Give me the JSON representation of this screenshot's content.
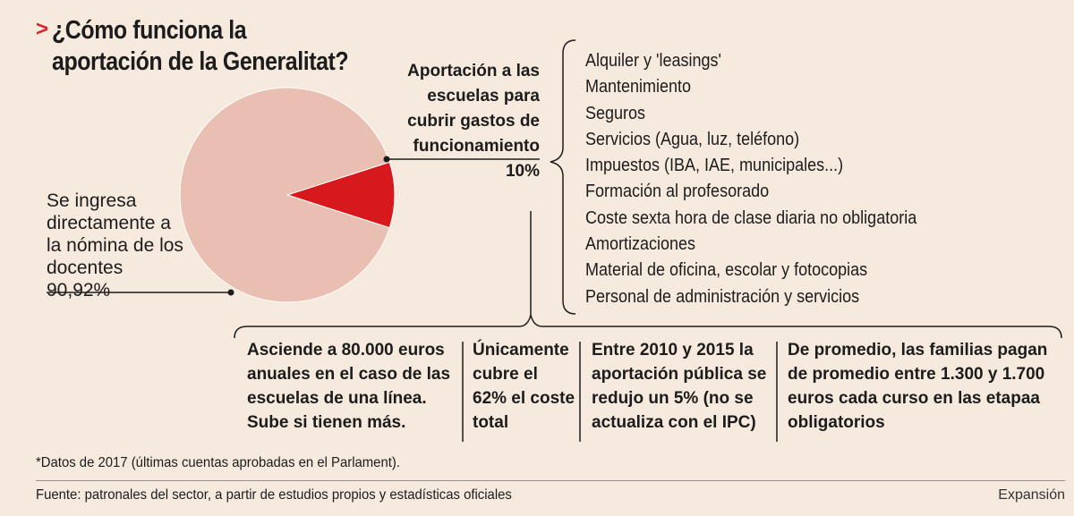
{
  "header": {
    "arrow": ">",
    "title": "¿Cómo funciona la aportación de la Generalitat?"
  },
  "chart_data": {
    "type": "pie",
    "categories": [
      "Se ingresa directamente a la nómina de los docentes",
      "Aportación a las escuelas para cubrir gastos de funcionamiento"
    ],
    "values": [
      90.92,
      10
    ],
    "value_labels": [
      "90,92%",
      "10%"
    ],
    "colors": [
      "#e8bfb1",
      "#d7191e"
    ]
  },
  "labels": {
    "big_text": "Se ingresa directamente a la nómina de los docentes",
    "big_pct": "90,92%",
    "small_text": "Aportación a las escuelas para cubrir gastos de funcionamiento",
    "small_pct": "10%"
  },
  "expense_items": [
    "Alquiler y 'leasings'",
    "Mantenimiento",
    "Seguros",
    "Servicios (Agua, luz, teléfono)",
    "Impuestos (IBA, IAE, municipales...)",
    "Formación al profesorado",
    "Coste sexta hora de clase diaria no obligatoria",
    "Amortizaciones",
    "Material de oficina, escolar y fotocopias",
    "Personal de administración y servicios"
  ],
  "notes": [
    "Asciende a 80.000 euros anuales en el caso de las escuelas de una línea. Sube si tienen más.",
    "Únicamente cubre el 62% el coste total",
    "Entre 2010 y 2015 la aportación pública se redujo un 5% (no se actualiza con el IPC)",
    "De promedio, las familias pagan de promedio entre 1.300 y 1.700 euros cada curso en las etapaa obligatorios"
  ],
  "footnote": "*Datos de 2017 (últimas cuentas aprobadas en el Parlament).",
  "source": "Fuente: patronales del sector, a partir de estudios propios y estadísticas oficiales",
  "brand": "Expansión"
}
